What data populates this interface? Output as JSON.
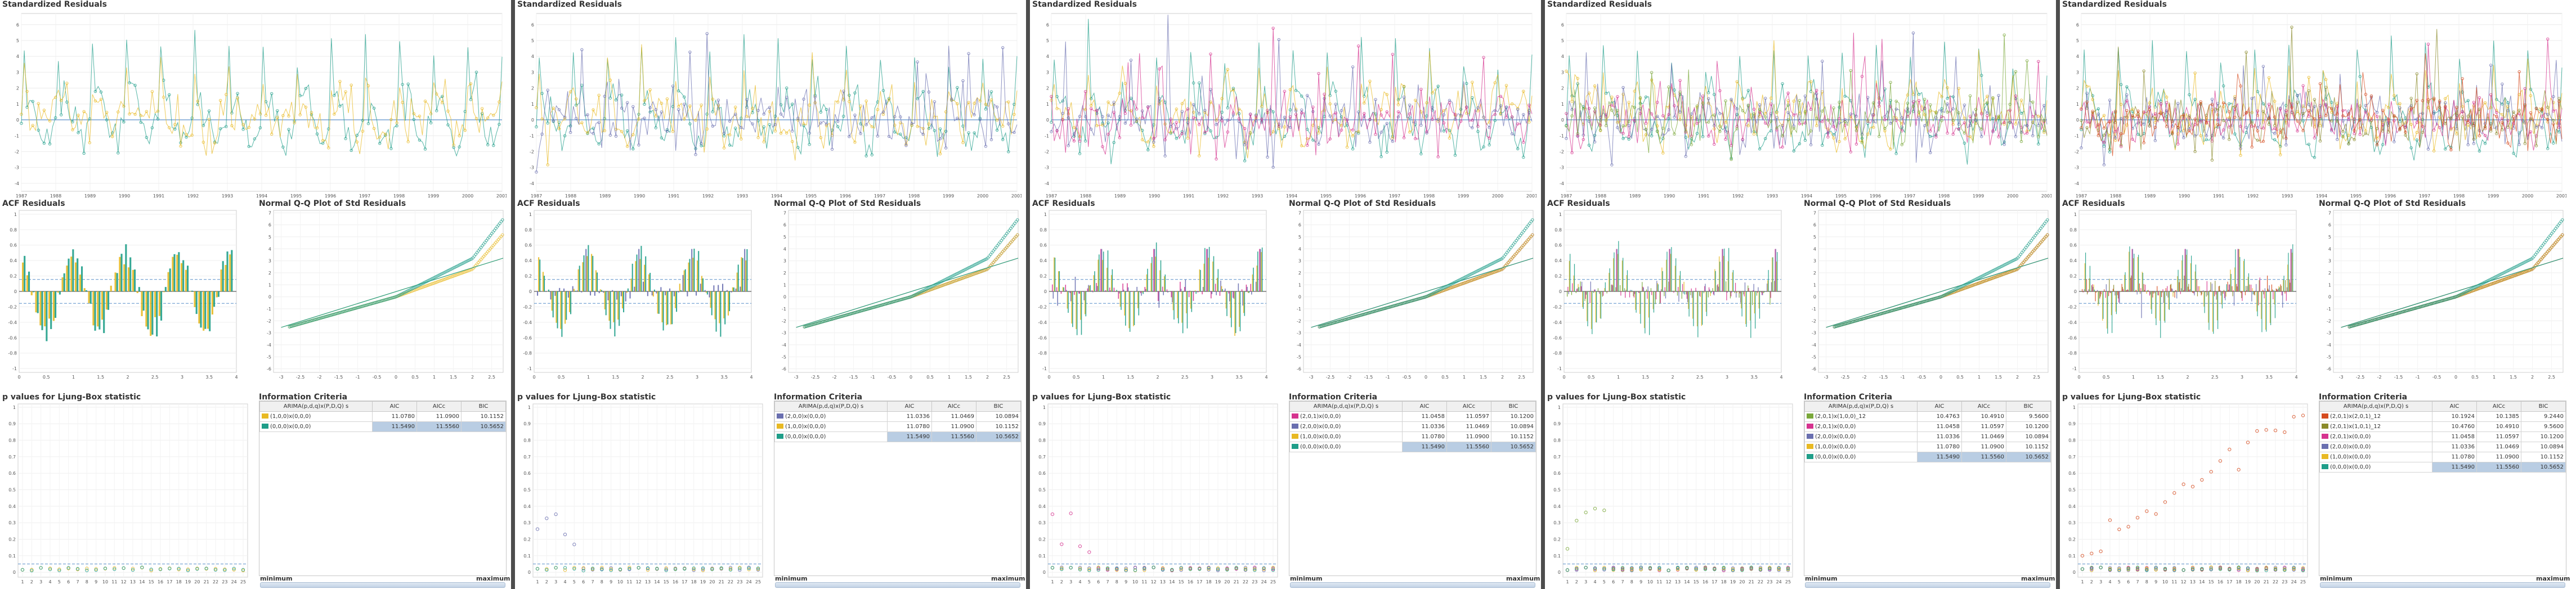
{
  "titles": {
    "std_resid": "Standardized Residuals",
    "acf": "ACF Residuals",
    "qq": "Normal Q-Q Plot of Std Residuals",
    "ljung": "p values for Ljung-Box statistic",
    "ic": "Information Criteria"
  },
  "ic_header": [
    "ARIMA(p,d,q)x(P,D,Q) s",
    "AIC",
    "AICc",
    "BIC"
  ],
  "slider": {
    "min_label": "minimum",
    "max_label": "maximum"
  },
  "time_ticks": [
    "1987",
    "1988",
    "1989",
    "1990",
    "1991",
    "1992",
    "1993",
    "1994",
    "1995",
    "1996",
    "1997",
    "1998",
    "1999",
    "2000",
    "2001"
  ],
  "resid_yticks": [
    "6",
    "5",
    "4",
    "3",
    "2",
    "1",
    "0",
    "-1",
    "-2",
    "-3",
    "-4"
  ],
  "acf_yticks": [
    "1",
    "0.8",
    "0.6",
    "0.4",
    "0.2",
    "0",
    "-0.2",
    "-0.4",
    "-0.6",
    "-0.8",
    "-1"
  ],
  "acf_xticks": [
    "0",
    "0.5",
    "1",
    "1.5",
    "2",
    "2.5",
    "3",
    "3.5",
    "4"
  ],
  "qq_yticks": [
    "7",
    "6",
    "5",
    "4",
    "3",
    "2",
    "1",
    "0",
    "-1",
    "-2",
    "-3",
    "-4",
    "-5",
    "-6"
  ],
  "qq_xticks": [
    "-3",
    "-2.5",
    "-2",
    "-1.5",
    "-1",
    "-0.5",
    "0",
    "0.5",
    "1",
    "1.5",
    "2",
    "2.5"
  ],
  "lb_yticks": [
    "1",
    "0.9",
    "0.8",
    "0.7",
    "0.6",
    "0.5",
    "0.4",
    "0.3",
    "0.2",
    "0.1",
    "0"
  ],
  "lb_xticks": [
    "1",
    "2",
    "3",
    "4",
    "5",
    "6",
    "7",
    "8",
    "9",
    "10",
    "11",
    "12",
    "13",
    "14",
    "15",
    "16",
    "17",
    "18",
    "19",
    "20",
    "21",
    "22",
    "23",
    "24",
    "25"
  ],
  "panels": [
    {
      "models": [
        {
          "label": "(1,0,0)x(0,0,0)",
          "color": "#e8b923",
          "aic": "11.0780",
          "aicc": "11.0900",
          "bic": "10.1152",
          "best": false
        },
        {
          "label": "(0,0,0)x(0,0,0)",
          "color": "#1f9e89",
          "aic": "11.5490",
          "aicc": "11.5560",
          "bic": "10.5652",
          "best": true
        }
      ]
    },
    {
      "models": [
        {
          "label": "(2,0,0)x(0,0,0)",
          "color": "#6a6fb0",
          "aic": "11.0336",
          "aicc": "11.0469",
          "bic": "10.0894",
          "best": false
        },
        {
          "label": "(1,0,0)x(0,0,0)",
          "color": "#e8b923",
          "aic": "11.0780",
          "aicc": "11.0900",
          "bic": "10.1152",
          "best": false
        },
        {
          "label": "(0,0,0)x(0,0,0)",
          "color": "#1f9e89",
          "aic": "11.5490",
          "aicc": "11.5560",
          "bic": "10.5652",
          "best": true
        }
      ]
    },
    {
      "models": [
        {
          "label": "(2,0,1)x(0,0,0)",
          "color": "#d6338f",
          "aic": "11.0458",
          "aicc": "11.0597",
          "bic": "10.1200",
          "best": false
        },
        {
          "label": "(2,0,0)x(0,0,0)",
          "color": "#6a6fb0",
          "aic": "11.0336",
          "aicc": "11.0469",
          "bic": "10.0894",
          "best": false
        },
        {
          "label": "(1,0,0)x(0,0,0)",
          "color": "#e8b923",
          "aic": "11.0780",
          "aicc": "11.0900",
          "bic": "10.1152",
          "best": false
        },
        {
          "label": "(0,0,0)x(0,0,0)",
          "color": "#1f9e89",
          "aic": "11.5490",
          "aicc": "11.5560",
          "bic": "10.5652",
          "best": true
        }
      ]
    },
    {
      "models": [
        {
          "label": "(2,0,1)x(1,0,0)_12",
          "color": "#7aa83a",
          "aic": "10.4763",
          "aicc": "10.4910",
          "bic": "9.5600",
          "best": false
        },
        {
          "label": "(2,0,1)x(0,0,0)",
          "color": "#d6338f",
          "aic": "11.0458",
          "aicc": "11.0597",
          "bic": "10.1200",
          "best": false
        },
        {
          "label": "(2,0,0)x(0,0,0)",
          "color": "#6a6fb0",
          "aic": "11.0336",
          "aicc": "11.0469",
          "bic": "10.0894",
          "best": false
        },
        {
          "label": "(1,0,0)x(0,0,0)",
          "color": "#e8b923",
          "aic": "11.0780",
          "aicc": "11.0900",
          "bic": "10.1152",
          "best": false
        },
        {
          "label": "(0,0,0)x(0,0,0)",
          "color": "#1f9e89",
          "aic": "11.5490",
          "aicc": "11.5560",
          "bic": "10.5652",
          "best": true
        }
      ]
    },
    {
      "models": [
        {
          "label": "(2,0,1)x(2,0,1)_12",
          "color": "#d64b1f",
          "aic": "10.1924",
          "aicc": "10.1385",
          "bic": "9.2440",
          "best": false
        },
        {
          "label": "(2,0,1)x(1,0,1)_12",
          "color": "#8a8a2a",
          "aic": "10.4760",
          "aicc": "10.4910",
          "bic": "9.5600",
          "best": false
        },
        {
          "label": "(2,0,1)x(0,0,0)",
          "color": "#d6338f",
          "aic": "11.0458",
          "aicc": "11.0597",
          "bic": "10.1200",
          "best": false
        },
        {
          "label": "(2,0,0)x(0,0,0)",
          "color": "#6a6fb0",
          "aic": "11.0336",
          "aicc": "11.0469",
          "bic": "10.0894",
          "best": false
        },
        {
          "label": "(1,0,0)x(0,0,0)",
          "color": "#e8b923",
          "aic": "11.0780",
          "aicc": "11.0900",
          "bic": "10.1152",
          "best": false
        },
        {
          "label": "(0,0,0)x(0,0,0)",
          "color": "#1f9e89",
          "aic": "11.5490",
          "aicc": "11.5560",
          "bic": "10.5652",
          "best": true
        }
      ]
    }
  ]
}
